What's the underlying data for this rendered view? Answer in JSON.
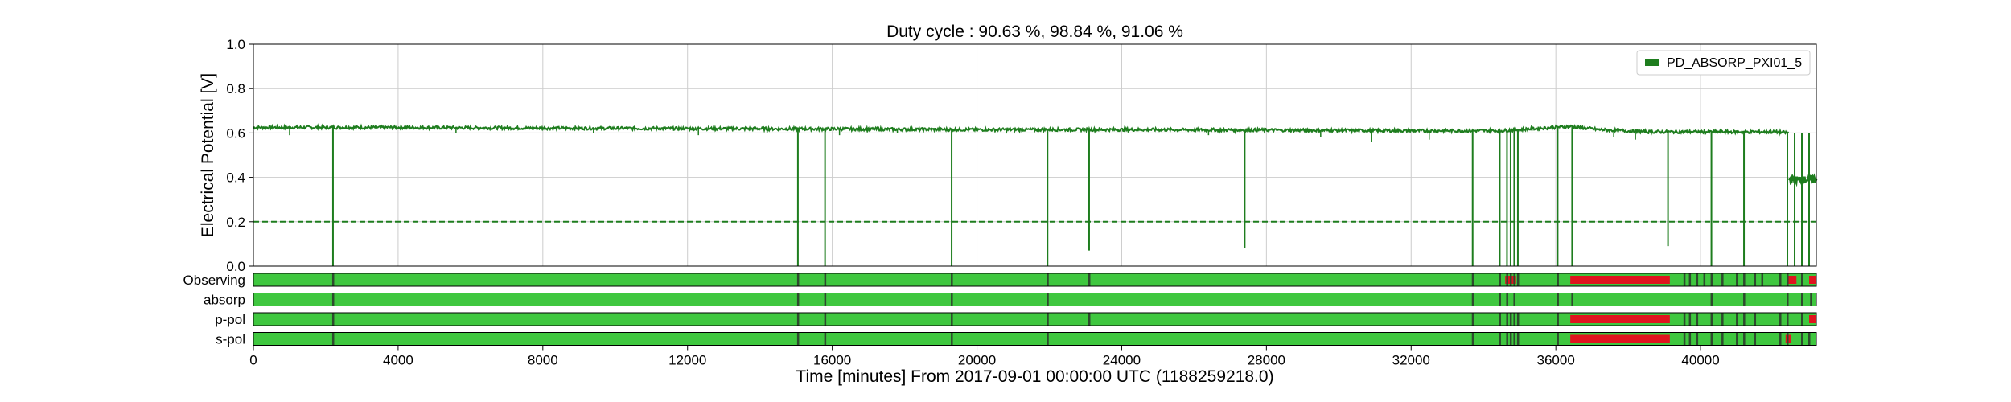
{
  "chart_data": {
    "type": "line",
    "title": "Duty cycle : 90.63 %, 98.84 %, 91.06 %",
    "xlabel": "Time [minutes] From 2017-09-01 00:00:00 UTC (1188259218.0)",
    "ylabel": "Electrical Potential [V]",
    "xlim": [
      0,
      43200
    ],
    "ylim": [
      0,
      1.0
    ],
    "x_ticks": [
      0,
      4000,
      8000,
      12000,
      16000,
      20000,
      24000,
      28000,
      32000,
      36000,
      40000
    ],
    "x_tick_labels": [
      "0",
      "4000",
      "8000",
      "12000",
      "16000",
      "20000",
      "24000",
      "28000",
      "32000",
      "36000",
      "40000"
    ],
    "y_ticks": [
      0.0,
      0.2,
      0.4,
      0.6,
      0.8,
      1.0
    ],
    "y_tick_labels": [
      "0.0",
      "0.2",
      "0.4",
      "0.6",
      "0.8",
      "1.0"
    ],
    "grid": true,
    "legend_position": "top-right",
    "threshold": {
      "value": 0.2,
      "style": "dashed",
      "color": "#1e7d1e"
    },
    "series": [
      {
        "name": "PD_ABSORP_PXI01_5",
        "color": "#1e7d1e",
        "baseline": [
          [
            0,
            0.625
          ],
          [
            4000,
            0.625
          ],
          [
            8000,
            0.622
          ],
          [
            12000,
            0.62
          ],
          [
            16000,
            0.618
          ],
          [
            20000,
            0.615
          ],
          [
            24000,
            0.615
          ],
          [
            28000,
            0.613
          ],
          [
            32000,
            0.61
          ],
          [
            34500,
            0.61
          ],
          [
            36400,
            0.63
          ],
          [
            37200,
            0.615
          ],
          [
            38500,
            0.605
          ],
          [
            40000,
            0.605
          ],
          [
            42000,
            0.605
          ],
          [
            42500,
            0.6
          ],
          [
            43200,
            0.6
          ]
        ],
        "dropouts": [
          {
            "x": 2200,
            "y": 0.0
          },
          {
            "x": 15050,
            "y": 0.0
          },
          {
            "x": 15800,
            "y": 0.0
          },
          {
            "x": 19300,
            "y": 0.0
          },
          {
            "x": 21950,
            "y": 0.0
          },
          {
            "x": 23100,
            "y": 0.07
          },
          {
            "x": 27400,
            "y": 0.08
          },
          {
            "x": 33700,
            "y": 0.0
          },
          {
            "x": 34450,
            "y": 0.0
          },
          {
            "x": 34650,
            "y": 0.0
          },
          {
            "x": 34750,
            "y": 0.0
          },
          {
            "x": 34850,
            "y": 0.0
          },
          {
            "x": 34950,
            "y": 0.0
          },
          {
            "x": 36050,
            "y": 0.0
          },
          {
            "x": 36450,
            "y": 0.0
          },
          {
            "x": 39100,
            "y": 0.09
          },
          {
            "x": 40300,
            "y": 0.0
          },
          {
            "x": 41200,
            "y": 0.0
          },
          {
            "x": 42400,
            "y": 0.0
          },
          {
            "x": 42600,
            "y": 0.0
          },
          {
            "x": 42800,
            "y": 0.0
          },
          {
            "x": 43000,
            "y": 0.0
          }
        ],
        "small_dips": [
          {
            "x": 1000,
            "y": 0.59
          },
          {
            "x": 5600,
            "y": 0.6
          },
          {
            "x": 9400,
            "y": 0.6
          },
          {
            "x": 12300,
            "y": 0.59
          },
          {
            "x": 14200,
            "y": 0.6
          },
          {
            "x": 16200,
            "y": 0.59
          },
          {
            "x": 17800,
            "y": 0.6
          },
          {
            "x": 26400,
            "y": 0.59
          },
          {
            "x": 29500,
            "y": 0.58
          },
          {
            "x": 30900,
            "y": 0.56
          },
          {
            "x": 32500,
            "y": 0.57
          },
          {
            "x": 37600,
            "y": 0.58
          },
          {
            "x": 38200,
            "y": 0.57
          }
        ],
        "low_segment": {
          "x_start": 42450,
          "x_end": 43200,
          "y": 0.39
        }
      }
    ],
    "state_bars": [
      {
        "name": "Observing",
        "red_segments": [
          [
            34600,
            34900
          ],
          [
            36400,
            39150
          ],
          [
            42400,
            42650
          ],
          [
            43000,
            43200
          ]
        ],
        "dark_marks": [
          2200,
          15050,
          15800,
          19300,
          21950,
          23100,
          33700,
          34450,
          34650,
          34750,
          34850,
          34950,
          36050,
          39550,
          39700,
          39900,
          40100,
          40300,
          40600,
          41000,
          41200,
          41500,
          41700,
          42200,
          42400,
          42800
        ]
      },
      {
        "name": "absorp",
        "red_segments": [],
        "dark_marks": [
          2200,
          15050,
          15800,
          19300,
          21950,
          33700,
          34450,
          34650,
          34850,
          36050,
          36450,
          40300,
          41200,
          42400,
          42800,
          43050
        ]
      },
      {
        "name": "p-pol",
        "red_segments": [
          [
            36400,
            39150
          ],
          [
            43000,
            43200
          ]
        ],
        "dark_marks": [
          2200,
          15050,
          15800,
          19300,
          21950,
          23100,
          33700,
          34450,
          34650,
          34750,
          34850,
          34950,
          36050,
          39550,
          39700,
          39900,
          40300,
          40600,
          41000,
          41200,
          41500,
          42200,
          42400,
          42800
        ]
      },
      {
        "name": "s-pol",
        "red_segments": [
          [
            36400,
            39150
          ],
          [
            42350,
            42500
          ]
        ],
        "dark_marks": [
          2200,
          15050,
          15800,
          19300,
          21950,
          33700,
          34450,
          34650,
          34750,
          34850,
          34950,
          36050,
          39550,
          39700,
          39900,
          40300,
          40600,
          41000,
          41200,
          41500,
          42200,
          42400,
          42800,
          43000
        ]
      }
    ]
  },
  "colors": {
    "state_green": "#3fc73f",
    "state_red": "#e0141e",
    "state_dark": "#2d4a2d",
    "grid": "#cccccc",
    "axes": "#000000"
  }
}
